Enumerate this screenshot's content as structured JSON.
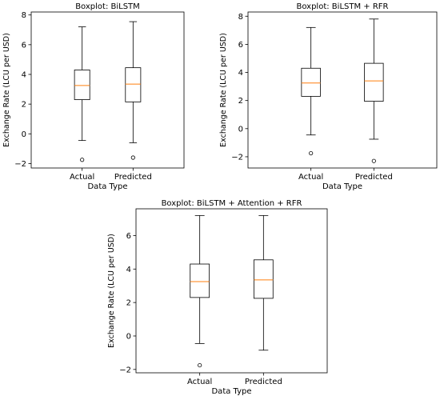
{
  "chart_data": [
    {
      "type": "box",
      "title": "Boxplot: BiLSTM",
      "xlabel": "Data Type",
      "ylabel": "Exchange Rate (LCU per USD)",
      "categories": [
        "Actual",
        "Predicted"
      ],
      "ylim": [
        -2.3,
        8.2
      ],
      "yticks": [
        -2,
        0,
        2,
        4,
        6,
        8
      ],
      "boxes": [
        {
          "whisker_low": -0.45,
          "q1": 2.3,
          "median": 3.25,
          "q3": 4.3,
          "whisker_high": 7.2,
          "fliers": [
            -1.75
          ]
        },
        {
          "whisker_low": -0.6,
          "q1": 2.15,
          "median": 3.35,
          "q3": 4.45,
          "whisker_high": 7.55,
          "fliers": [
            -1.6
          ]
        }
      ]
    },
    {
      "type": "box",
      "title": "Boxplot: BiLSTM + RFR",
      "xlabel": "Data Type",
      "ylabel": "Exchange Rate (LCU per USD)",
      "categories": [
        "Actual",
        "Predicted"
      ],
      "ylim": [
        -2.8,
        8.3
      ],
      "yticks": [
        -2,
        0,
        2,
        4,
        6,
        8
      ],
      "boxes": [
        {
          "whisker_low": -0.45,
          "q1": 2.3,
          "median": 3.25,
          "q3": 4.3,
          "whisker_high": 7.2,
          "fliers": [
            -1.75
          ]
        },
        {
          "whisker_low": -0.75,
          "q1": 1.95,
          "median": 3.4,
          "q3": 4.65,
          "whisker_high": 7.8,
          "fliers": [
            -2.3
          ]
        }
      ]
    },
    {
      "type": "box",
      "title": "Boxplot: BiLSTM + Attention + RFR",
      "xlabel": "Data Type",
      "ylabel": "Exchange Rate (LCU per USD)",
      "categories": [
        "Actual",
        "Predicted"
      ],
      "ylim": [
        -2.2,
        7.6
      ],
      "yticks": [
        -2,
        0,
        2,
        4,
        6
      ],
      "boxes": [
        {
          "whisker_low": -0.45,
          "q1": 2.3,
          "median": 3.25,
          "q3": 4.3,
          "whisker_high": 7.2,
          "fliers": [
            -1.75
          ]
        },
        {
          "whisker_low": -0.85,
          "q1": 2.25,
          "median": 3.35,
          "q3": 4.55,
          "whisker_high": 7.2,
          "fliers": []
        }
      ]
    }
  ],
  "colors": {
    "box": "#000000",
    "median": "#ff7f0e",
    "background": "#ffffff"
  }
}
